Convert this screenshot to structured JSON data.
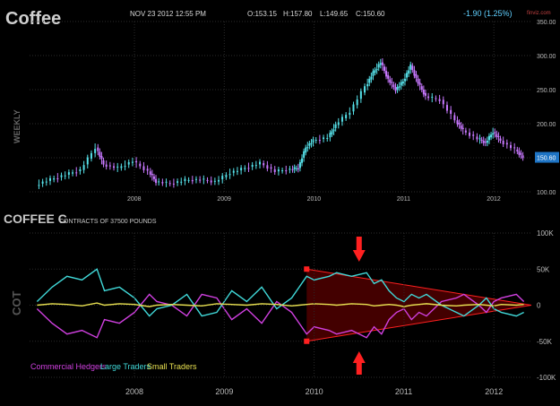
{
  "header": {
    "title": "Coffee",
    "date": "NOV 23 2012 12:55 PM",
    "open": "O:153.15",
    "high": "H:157.80",
    "low": "L:149.65",
    "close": "C:150.60",
    "change": "-1.90 (1.25%)",
    "brand": "finviz.com"
  },
  "colors": {
    "background": "#000000",
    "candle_up": "#55e0e8",
    "candle_down": "#c878ff",
    "commercial": "#d040e0",
    "large": "#40d8d8",
    "small": "#e8e050",
    "annotation": "#ff2020",
    "shade": "#5a0000",
    "price_badge": "#1e74c4"
  },
  "chart_data": [
    {
      "type": "candlestick",
      "title": "Coffee",
      "ylabel": "WEEKLY",
      "ylim": [
        100,
        350
      ],
      "yticks": [
        "350.00",
        "300.00",
        "250.00",
        "200.00",
        "150.00",
        "100.00"
      ],
      "xticks": [
        "2008",
        "2009",
        "2010",
        "2011",
        "2012"
      ],
      "last_price": "150.60",
      "x": [
        "2007-06",
        "2007-08",
        "2007-10",
        "2007-12",
        "2008-02",
        "2008-03",
        "2008-05",
        "2008-07",
        "2008-09",
        "2008-10",
        "2008-12",
        "2009-02",
        "2009-04",
        "2009-06",
        "2009-08",
        "2009-10",
        "2009-12",
        "2010-02",
        "2010-04",
        "2010-05",
        "2010-06",
        "2010-07",
        "2010-09",
        "2010-10",
        "2010-12",
        "2011-02",
        "2011-03",
        "2011-04",
        "2011-05",
        "2011-06",
        "2011-07",
        "2011-08",
        "2011-09",
        "2011-10",
        "2011-12",
        "2012-02",
        "2012-03",
        "2012-05",
        "2012-06",
        "2012-07",
        "2012-08",
        "2012-10",
        "2012-11"
      ],
      "close": [
        110,
        118,
        125,
        132,
        165,
        140,
        135,
        145,
        130,
        115,
        112,
        117,
        118,
        115,
        128,
        135,
        142,
        130,
        133,
        135,
        165,
        175,
        180,
        198,
        218,
        255,
        275,
        290,
        265,
        250,
        262,
        285,
        260,
        240,
        235,
        205,
        190,
        178,
        172,
        188,
        175,
        162,
        150.6
      ]
    },
    {
      "type": "line",
      "title": "COFFEE C",
      "subtitle": "CONTRACTS OF 37500 POUNDS",
      "ylabel": "COT",
      "ylim": [
        -100000,
        100000
      ],
      "yticks": [
        "100K",
        "50K",
        "0",
        "-50K",
        "-100K"
      ],
      "xticks": [
        "2008",
        "2009",
        "2010",
        "2011",
        "2012"
      ],
      "x": [
        "2007-06",
        "2007-08",
        "2007-10",
        "2007-12",
        "2008-02",
        "2008-03",
        "2008-05",
        "2008-07",
        "2008-09",
        "2008-10",
        "2008-12",
        "2009-02",
        "2009-04",
        "2009-06",
        "2009-08",
        "2009-10",
        "2009-12",
        "2010-02",
        "2010-04",
        "2010-05",
        "2010-06",
        "2010-07",
        "2010-09",
        "2010-10",
        "2010-12",
        "2011-02",
        "2011-03",
        "2011-04",
        "2011-05",
        "2011-06",
        "2011-07",
        "2011-08",
        "2011-09",
        "2011-10",
        "2011-12",
        "2012-02",
        "2012-03",
        "2012-05",
        "2012-06",
        "2012-07",
        "2012-08",
        "2012-10",
        "2012-11"
      ],
      "series": [
        {
          "name": "Commercial Hedgers",
          "color_key": "commercial",
          "values": [
            -5000,
            -25000,
            -40000,
            -35000,
            -45000,
            -20000,
            -25000,
            -10000,
            15000,
            5000,
            0,
            -15000,
            15000,
            10000,
            -20000,
            -5000,
            -25000,
            5000,
            -10000,
            -25000,
            -40000,
            -30000,
            -35000,
            -40000,
            -35000,
            -45000,
            -30000,
            -40000,
            -20000,
            -10000,
            -5000,
            -20000,
            -10000,
            -15000,
            5000,
            10000,
            15000,
            0,
            -10000,
            5000,
            10000,
            15000,
            5000
          ]
        },
        {
          "name": "Large Traders",
          "color_key": "large",
          "values": [
            5000,
            25000,
            40000,
            35000,
            50000,
            20000,
            25000,
            10000,
            -15000,
            -5000,
            0,
            15000,
            -15000,
            -10000,
            20000,
            5000,
            25000,
            -5000,
            10000,
            25000,
            40000,
            35000,
            40000,
            45000,
            40000,
            45000,
            30000,
            35000,
            20000,
            10000,
            5000,
            15000,
            10000,
            15000,
            0,
            -10000,
            -15000,
            0,
            10000,
            -5000,
            -10000,
            -15000,
            -10000
          ]
        },
        {
          "name": "Small Traders",
          "color_key": "small",
          "values": [
            0,
            2000,
            1000,
            -1000,
            3000,
            0,
            2000,
            1000,
            -2000,
            0,
            1000,
            0,
            -1000,
            2000,
            1000,
            0,
            2000,
            1000,
            -1000,
            0,
            1000,
            2000,
            1000,
            0,
            2000,
            1000,
            -1000,
            0,
            1000,
            0,
            -2000,
            0,
            1000,
            2000,
            0,
            -1000,
            0,
            1000,
            0,
            -1000,
            1000,
            0,
            1000
          ]
        }
      ]
    }
  ]
}
